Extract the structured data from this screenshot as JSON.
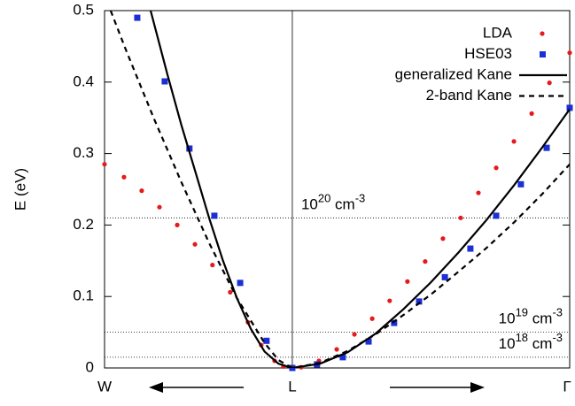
{
  "chart_data": {
    "type": "line",
    "ylabel": "E (eV)",
    "xlim": [
      -0.677,
      1.0
    ],
    "ylim": [
      0,
      0.5
    ],
    "xticks": [
      {
        "value": -0.677,
        "label": "W"
      },
      {
        "value": 0,
        "label": "L"
      },
      {
        "value": 1.0,
        "label": "Γ"
      }
    ],
    "yticks": [
      0,
      0.1,
      0.2,
      0.3,
      0.4,
      0.5
    ],
    "legend": "upper right",
    "series": [
      {
        "name": "LDA",
        "color": "#e41a1c",
        "kind": "points",
        "marker": "circle",
        "x": [
          -0.677,
          -0.607,
          -0.543,
          -0.479,
          -0.415,
          -0.351,
          -0.288,
          -0.224,
          -0.16,
          -0.112,
          -0.064,
          -0.032,
          0,
          0.032,
          0.096,
          0.16,
          0.224,
          0.288,
          0.351,
          0.415,
          0.479,
          0.543,
          0.607,
          0.671,
          0.735,
          0.799,
          0.863,
          0.927,
          1.0
        ],
        "values": [
          0.285,
          0.267,
          0.248,
          0.225,
          0.2,
          0.173,
          0.144,
          0.106,
          0.064,
          0.032,
          0.01,
          0.002,
          0,
          0.001,
          0.01,
          0.026,
          0.047,
          0.069,
          0.094,
          0.121,
          0.149,
          0.181,
          0.21,
          0.245,
          0.28,
          0.317,
          0.356,
          0.399,
          0.441
        ]
      },
      {
        "name": "HSE03",
        "color": "#1c2fd4",
        "kind": "points",
        "marker": "square",
        "x": [
          -0.559,
          -0.46,
          -0.371,
          -0.281,
          -0.188,
          -0.093,
          0,
          0.089,
          0.182,
          0.275,
          0.367,
          0.457,
          0.55,
          0.642,
          0.735,
          0.824,
          0.917,
          1.0
        ],
        "values": [
          0.49,
          0.401,
          0.307,
          0.213,
          0.119,
          0.038,
          0,
          0.005,
          0.015,
          0.037,
          0.063,
          0.093,
          0.127,
          0.167,
          0.213,
          0.257,
          0.308,
          0.364
        ]
      },
      {
        "name": "generalized Kane",
        "color": "#000000",
        "kind": "line",
        "dash": false,
        "x": [
          -0.511,
          -0.45,
          -0.4,
          -0.35,
          -0.3,
          -0.25,
          -0.2,
          -0.15,
          -0.1,
          -0.05,
          0,
          0.1,
          0.2,
          0.3,
          0.4,
          0.5,
          0.6,
          0.7,
          0.8,
          0.9,
          1.0
        ],
        "values": [
          0.5,
          0.41,
          0.34,
          0.275,
          0.21,
          0.15,
          0.098,
          0.055,
          0.023,
          0.006,
          0,
          0.006,
          0.022,
          0.048,
          0.082,
          0.12,
          0.162,
          0.207,
          0.256,
          0.308,
          0.362
        ]
      },
      {
        "name": "2-band Kane",
        "color": "#000000",
        "kind": "line",
        "dash": true,
        "x": [
          -0.655,
          -0.6,
          -0.5,
          -0.4,
          -0.3,
          -0.2,
          -0.1,
          -0.05,
          0,
          0.1,
          0.2,
          0.3,
          0.4,
          0.5,
          0.6,
          0.7,
          0.8,
          0.9,
          1.0
        ],
        "values": [
          0.5,
          0.445,
          0.35,
          0.26,
          0.175,
          0.098,
          0.035,
          0.011,
          0,
          0.007,
          0.024,
          0.047,
          0.074,
          0.103,
          0.135,
          0.168,
          0.204,
          0.243,
          0.285
        ]
      }
    ],
    "annotations": [
      {
        "y": 0.21,
        "text": "10",
        "sup": "20",
        "unit": " cm",
        "unit_sup": "-3"
      },
      {
        "y": 0.05,
        "text": "10",
        "sup": "19",
        "unit": " cm",
        "unit_sup": "-3"
      },
      {
        "y": 0.015,
        "text": "10",
        "sup": "18",
        "unit": " cm",
        "unit_sup": "-3"
      }
    ]
  }
}
